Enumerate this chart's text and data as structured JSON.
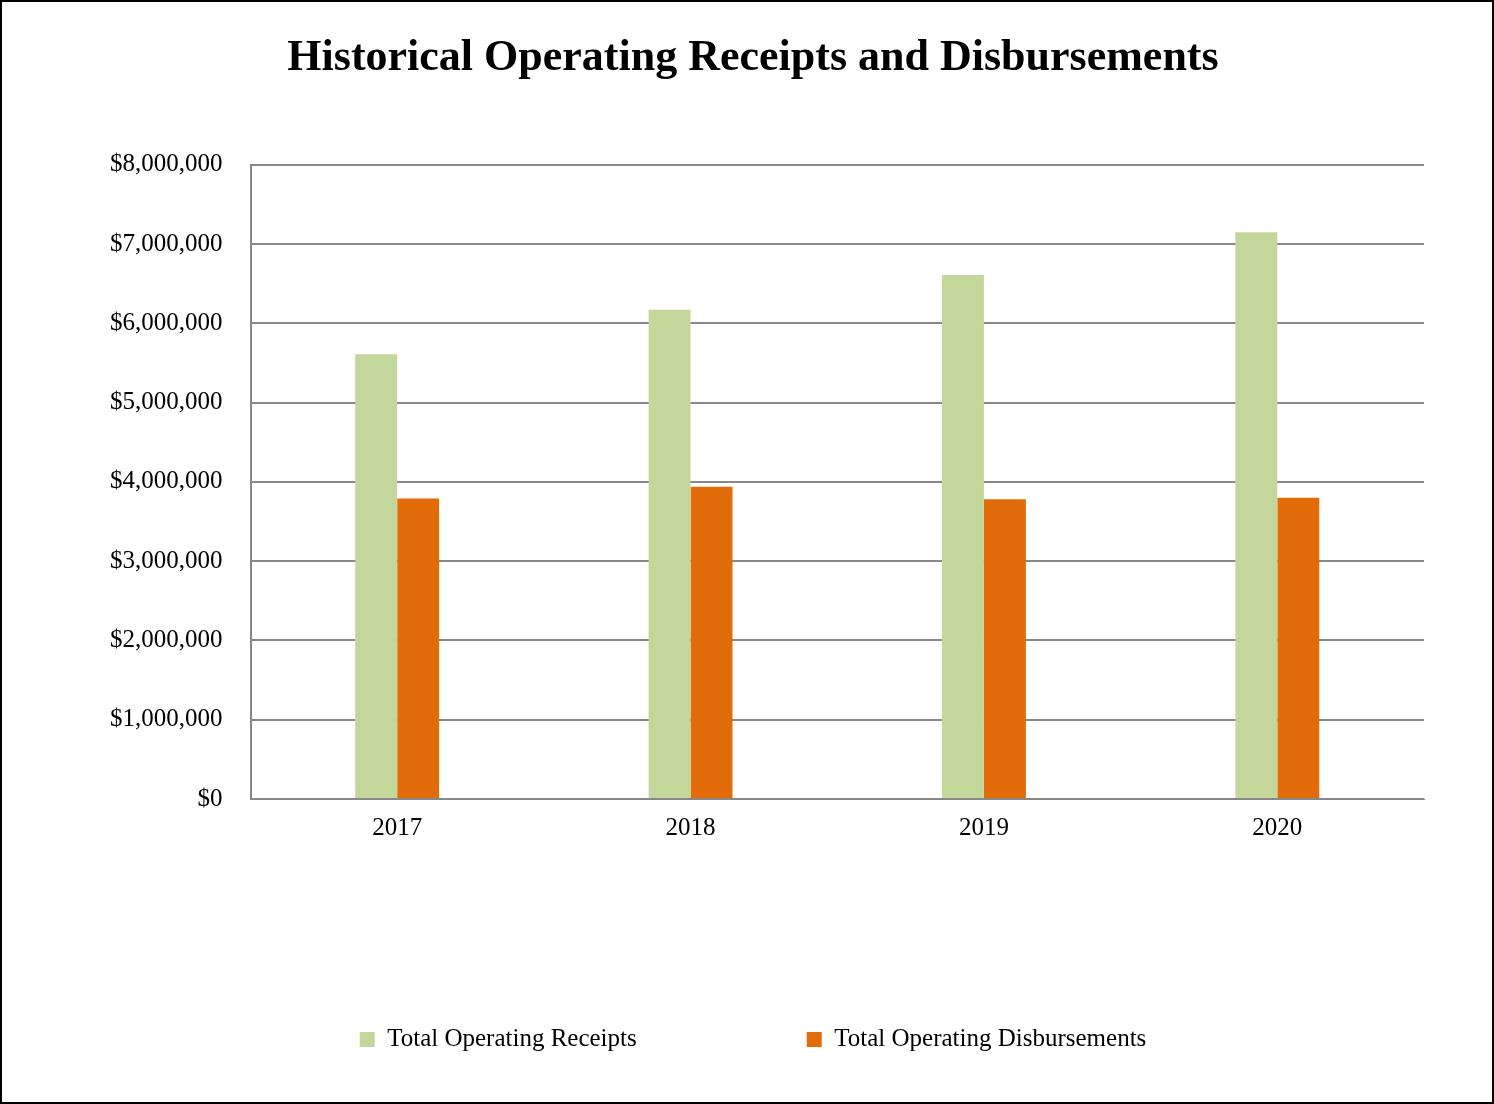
{
  "chart_data": {
    "type": "bar",
    "title": "Historical Operating Receipts and Disbursements",
    "categories": [
      "2017",
      "2018",
      "2019",
      "2020"
    ],
    "series": [
      {
        "name": "Total Operating Receipts",
        "color": "#c4d79b",
        "values": [
          5610000,
          6170000,
          6610000,
          7150000
        ]
      },
      {
        "name": "Total Operating Disbursements",
        "color": "#e26b0a",
        "values": [
          3790000,
          3940000,
          3780000,
          3800000
        ]
      }
    ],
    "ylim": [
      0,
      8000000
    ],
    "yticks": [
      {
        "value": 0,
        "label": "$0"
      },
      {
        "value": 1000000,
        "label": "$1,000,000"
      },
      {
        "value": 2000000,
        "label": "$2,000,000"
      },
      {
        "value": 3000000,
        "label": "$3,000,000"
      },
      {
        "value": 4000000,
        "label": "$4,000,000"
      },
      {
        "value": 5000000,
        "label": "$5,000,000"
      },
      {
        "value": 6000000,
        "label": "$6,000,000"
      },
      {
        "value": 7000000,
        "label": "$7,000,000"
      },
      {
        "value": 8000000,
        "label": "$8,000,000"
      }
    ],
    "grid": "y",
    "legend": "bottom"
  }
}
